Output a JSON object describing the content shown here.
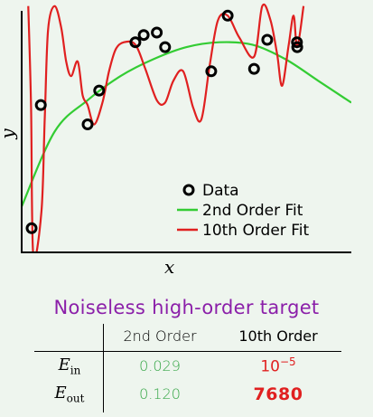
{
  "chart_data": {
    "type": "line",
    "xlabel": "x",
    "ylabel": "y",
    "xlim": [
      0,
      1
    ],
    "ylim": [
      0,
      1
    ],
    "legend_placement": "bottom-right",
    "grid": false,
    "series": [
      {
        "name": "Data",
        "kind": "scatter",
        "color": "#000000",
        "x": [
          0.03,
          0.058,
          0.2,
          0.235,
          0.345,
          0.37,
          0.41,
          0.435,
          0.575,
          0.625,
          0.705,
          0.745,
          0.835,
          0.836
        ],
        "y": [
          0.1,
          0.61,
          0.53,
          0.67,
          0.87,
          0.9,
          0.91,
          0.85,
          0.75,
          0.98,
          0.76,
          0.88,
          0.87,
          0.85
        ]
      },
      {
        "name": "2nd Order Fit",
        "kind": "line",
        "color": "#33cc33",
        "x": [
          0,
          0.1,
          0.2,
          0.3,
          0.4,
          0.5,
          0.6,
          0.7,
          0.8,
          0.9,
          1.0
        ],
        "y": [
          0.19,
          0.5,
          0.63,
          0.73,
          0.8,
          0.85,
          0.87,
          0.86,
          0.8,
          0.71,
          0.62
        ]
      },
      {
        "name": "10th Order Fit",
        "kind": "line",
        "color": "#e02020",
        "x": [
          0.02,
          0.0285,
          0.035,
          0.06,
          0.07,
          0.08,
          0.1,
          0.12,
          0.135,
          0.15,
          0.17,
          0.185,
          0.2,
          0.22,
          0.245,
          0.265,
          0.285,
          0.31,
          0.345,
          0.375,
          0.41,
          0.435,
          0.46,
          0.49,
          0.52,
          0.545,
          0.57,
          0.595,
          0.625,
          0.66,
          0.705,
          0.73,
          0.755,
          0.775,
          0.79,
          0.81,
          0.825,
          0.836,
          0.855
        ],
        "y": [
          1.02,
          0.6,
          -0.01,
          0.17,
          0.55,
          0.92,
          1.02,
          0.93,
          0.79,
          0.73,
          0.79,
          0.65,
          0.61,
          0.53,
          0.62,
          0.75,
          0.84,
          0.87,
          0.86,
          0.76,
          0.63,
          0.62,
          0.71,
          0.75,
          0.6,
          0.55,
          0.77,
          0.96,
          0.98,
          0.89,
          0.81,
          1.02,
          0.96,
          0.82,
          0.69,
          0.86,
          0.98,
          0.85,
          1.02
        ]
      }
    ]
  },
  "table": {
    "title": "Noiseless high-order target",
    "headers": [
      "",
      "2nd Order",
      "10th Order"
    ],
    "rows": [
      {
        "label_main": "E",
        "label_sub": "in",
        "second": "0.029",
        "tenth_base": "10",
        "tenth_exp": "−5"
      },
      {
        "label_main": "E",
        "label_sub": "out",
        "second": "0.120",
        "tenth": "7680"
      }
    ]
  }
}
